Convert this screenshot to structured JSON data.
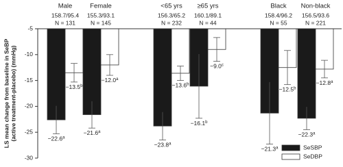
{
  "chart_data": {
    "type": "bar",
    "y_label": [
      "LS mean change from baseline in SeBP",
      "(active treatment-placebo) (mmHg)"
    ],
    "categories": [
      "Male",
      "Female",
      "<65 yrs",
      "≥65 yrs",
      "Black",
      "Non-black"
    ],
    "baseline": [
      "158.7/95.4",
      "155.3/93.1",
      "156.3/65.2",
      "160.1/89.1",
      "158.4/96.2",
      "156.5/93.6"
    ],
    "n_labels": [
      "N = 131",
      "N = 145",
      "N = 232",
      "N = 44",
      "N = 55",
      "N = 221"
    ],
    "series": [
      {
        "name": "SeSBP",
        "color": "#1a1a1a",
        "values": [
          -22.6,
          -21.6,
          -23.8,
          -16.1,
          -21.3,
          -22.3
        ],
        "value_labels": [
          "−22.6",
          "−21.6",
          "−23.8",
          "−16.1",
          "−21.3",
          "−22.3"
        ],
        "footnote_marks": [
          "a",
          "a",
          "a",
          "b",
          "a",
          "a"
        ],
        "errors": [
          2.7,
          2.6,
          2.7,
          6.2,
          6,
          2.2
        ]
      },
      {
        "name": "SeDBP",
        "color": "#ffffff",
        "values": [
          -13.5,
          -12.0,
          -13.6,
          -9.0,
          -12.5,
          -12.8
        ],
        "value_labels": [
          "−13.5",
          "−12.0",
          "−13.6",
          "−9.0",
          "−12.5",
          "−12.8"
        ],
        "footnote_marks": [
          "b",
          "a",
          "b",
          "c",
          "b",
          "a"
        ],
        "errors": [
          1.8,
          2,
          1.4,
          2.3,
          3.3,
          1.7
        ]
      }
    ],
    "ylim": [
      -5,
      -30
    ],
    "yticks": [
      -5,
      -10,
      -15,
      -20,
      -25,
      -30
    ]
  }
}
